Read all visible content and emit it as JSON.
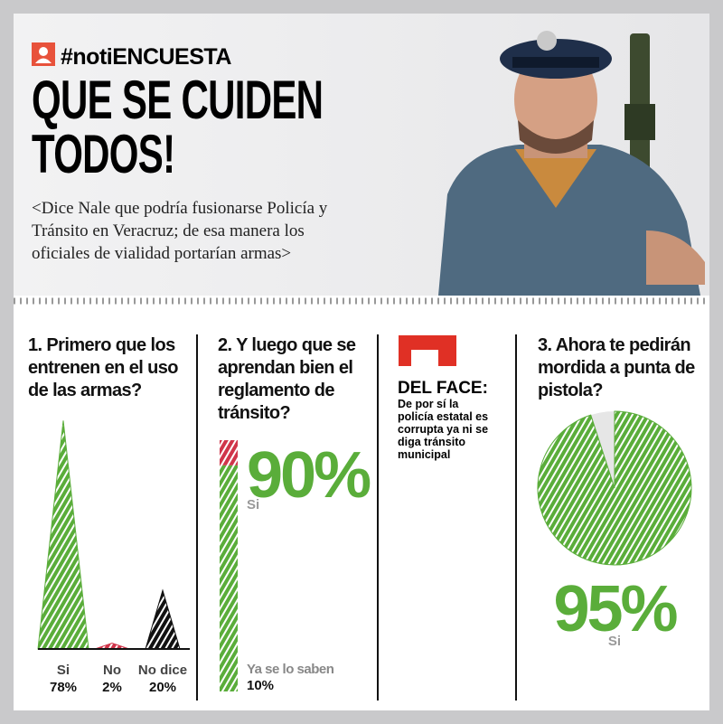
{
  "header": {
    "tag": "#notiENCUESTA",
    "title": "QUE SE CUIDEN TODOS!",
    "subtitle": "<Dice Nale que podría fusionarse Policía y Tránsito en Veracruz; de esa manera los oficiales de vialidad portarían armas>"
  },
  "aside": {
    "title": "DEL FACE:",
    "text": "De por sí la policía estatal es corrupta ya ni se diga tránsito municipal"
  },
  "chart_data": [
    {
      "type": "spike",
      "title": "1. Primero que los entrenen en el uso de las armas?",
      "categories": [
        "Si",
        "No",
        "No dice"
      ],
      "values": [
        78,
        2,
        20
      ],
      "value_labels": [
        "78%",
        "2%",
        "20%"
      ],
      "colors": [
        "#5aad3a",
        "#d0354a",
        "#111111"
      ]
    },
    {
      "type": "stacked-bar",
      "title": "2. Y luego que se aprendan bien el reglamento de tránsito?",
      "categories": [
        "Si",
        "Ya se lo saben"
      ],
      "values": [
        90,
        10
      ],
      "value_labels": [
        "90%",
        "10%"
      ],
      "colors": [
        "#5aad3a",
        "#d0354a"
      ]
    },
    {
      "type": "pie",
      "title": "3. Ahora te pedirán mordida a punta de pistola?",
      "categories": [
        "Si"
      ],
      "values": [
        95
      ],
      "value_labels": [
        "95%"
      ],
      "colors": [
        "#5aad3a"
      ]
    }
  ]
}
